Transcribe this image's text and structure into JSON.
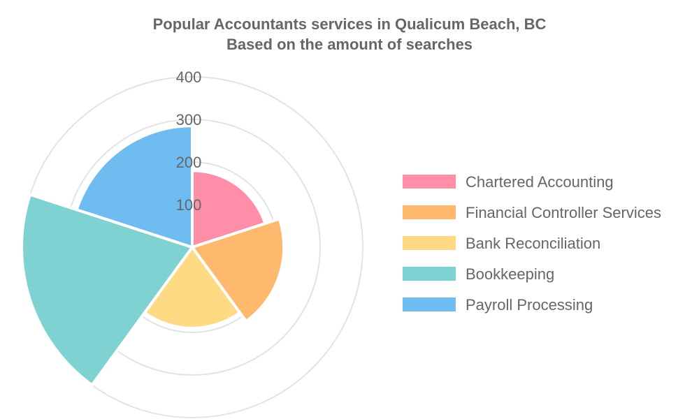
{
  "chart_data": {
    "type": "polarArea",
    "title": "Popular Accountants services in Qualicum Beach, BC",
    "subtitle": "Based on the amount of searches",
    "categories": [
      "Chartered Accounting",
      "Financial Controller Services",
      "Bank Reconciliation",
      "Bookkeeping",
      "Payroll Processing"
    ],
    "values": [
      180,
      215,
      190,
      400,
      285
    ],
    "colors": [
      "#ff8fa9",
      "#ffb96f",
      "#ffda85",
      "#7fd2d2",
      "#6fbcf0"
    ],
    "r_ticks": [
      "100",
      "200",
      "300",
      "400"
    ],
    "r_tick_values": [
      100,
      200,
      300,
      400
    ],
    "rlim": [
      0,
      400
    ],
    "grid": true,
    "legend_position": "right"
  }
}
